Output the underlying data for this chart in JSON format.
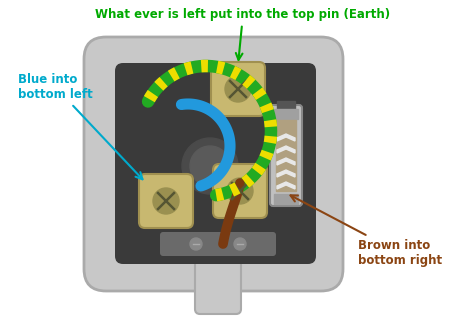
{
  "bg_color": "#ffffff",
  "plug_body_color": "#c8c8c8",
  "plug_body_edge": "#aaaaaa",
  "plug_inner_color": "#3a3a3a",
  "plug_inner_light": "#555555",
  "terminal_color": "#c8b870",
  "terminal_edge": "#a09050",
  "screw_color": "#9a9050",
  "screw_slot": "#555533",
  "fuse_body_color": "#c0c0c0",
  "fuse_edge_color": "#888888",
  "fuse_stripe_light": "#e8e8e8",
  "fuse_stripe_dark": "#b0a080",
  "fuse_end_color": "#a0a0a0",
  "earth_wire_green": "#22aa22",
  "earth_wire_yellow": "#eedd00",
  "blue_wire_color": "#2299dd",
  "brown_wire_color": "#7a3a10",
  "earth_label": "What ever is left put into the top pin (Earth)",
  "blue_label": "Blue into\nbottom left",
  "brown_label": "Brown into\nbottom right",
  "earth_label_color": "#00aa00",
  "blue_label_color": "#00aacc",
  "brown_label_color": "#8B4513",
  "title_fontsize": 8.5,
  "label_fontsize": 8.5
}
